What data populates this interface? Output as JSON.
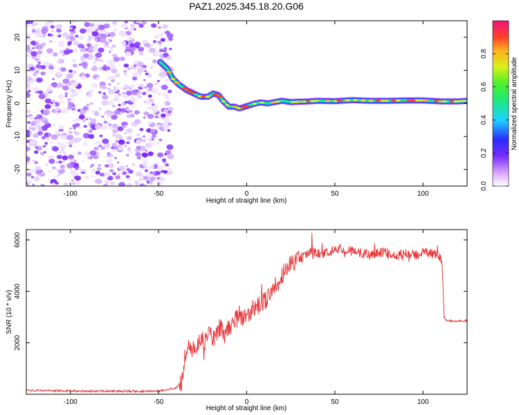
{
  "title": "PAZ1.2025.345.18.20.G06",
  "chart_data": [
    {
      "type": "heatmap",
      "name": "spectrogram",
      "xlabel": "Height of straight line (km)",
      "ylabel": "Frequency (Hz)",
      "xlim": [
        -125,
        125
      ],
      "ylim": [
        -25,
        25
      ],
      "xticks": [
        -100,
        -50,
        0,
        50,
        100
      ],
      "xtick_labels": [
        "-100",
        "-50",
        "0",
        "50",
        "100"
      ],
      "yticks": [
        -20,
        -10,
        0,
        10,
        20
      ],
      "ytick_labels": [
        "-20",
        "-10",
        "0",
        "10",
        "20"
      ],
      "noise_region_x": [
        -125,
        -43
      ],
      "ridge": {
        "x": [
          -49,
          -45,
          -42,
          -38,
          -34,
          -30,
          -26,
          -22,
          -19,
          -16,
          -13,
          -10,
          -7,
          -4,
          -1,
          2,
          5,
          8,
          12,
          16,
          20,
          25,
          30,
          35,
          40,
          50,
          60,
          70,
          80,
          90,
          100,
          110,
          120,
          125
        ],
        "y": [
          12.5,
          10.5,
          7.5,
          5.5,
          4.0,
          3.0,
          2.0,
          2.0,
          3.0,
          2.5,
          0.5,
          -1.0,
          -1.0,
          -1.5,
          -1.0,
          -0.5,
          0.0,
          0.3,
          0.0,
          0.4,
          0.8,
          0.4,
          0.5,
          0.6,
          0.8,
          0.7,
          1.0,
          0.8,
          0.8,
          0.9,
          0.9,
          0.6,
          0.6,
          0.8
        ]
      },
      "colorbar": {
        "label": "Normalized spectral amplitude",
        "range": [
          0,
          1
        ],
        "ticks": [
          0.0,
          0.2,
          0.4,
          0.6,
          0.8
        ],
        "tick_labels": [
          "0.0",
          "0.2",
          "0.4",
          "0.6",
          "0.8"
        ]
      }
    },
    {
      "type": "line",
      "name": "snr",
      "xlabel": "Height of straight line (km)",
      "ylabel": "SNR (10 * v/v)",
      "xlim": [
        -125,
        125
      ],
      "ylim": [
        0,
        6400
      ],
      "xticks": [
        -100,
        -50,
        0,
        50,
        100
      ],
      "xtick_labels": [
        "-100",
        "-50",
        "0",
        "50",
        "100"
      ],
      "yticks": [
        2000,
        4000,
        6000
      ],
      "ytick_labels": [
        "2000",
        "4000",
        "6000"
      ],
      "color": "#e8383b",
      "series": [
        {
          "name": "SNR",
          "x": [
            -125,
            -100,
            -75,
            -50,
            -40,
            -37,
            -35,
            -33,
            -30,
            -27,
            -24,
            -21,
            -18,
            -15,
            -12,
            -9,
            -6,
            -3,
            0,
            3,
            6,
            9,
            12,
            15,
            18,
            21,
            24,
            27,
            30,
            33,
            36,
            40,
            45,
            50,
            53,
            55,
            60,
            65,
            70,
            75,
            80,
            85,
            90,
            95,
            100,
            105,
            110,
            111,
            112,
            113,
            115,
            120,
            125
          ],
          "y": [
            150,
            130,
            120,
            120,
            250,
            500,
            1500,
            2000,
            1700,
            2200,
            2000,
            2500,
            2100,
            2600,
            2300,
            2700,
            2900,
            3000,
            3100,
            3300,
            3400,
            3500,
            3800,
            4100,
            4400,
            4700,
            5000,
            5100,
            5300,
            5400,
            5500,
            5500,
            5500,
            5600,
            5700,
            5500,
            5600,
            5500,
            5400,
            5500,
            5500,
            5400,
            5500,
            5400,
            5500,
            5500,
            5300,
            4800,
            3000,
            2900,
            2850,
            2850,
            2850
          ]
        }
      ]
    }
  ]
}
